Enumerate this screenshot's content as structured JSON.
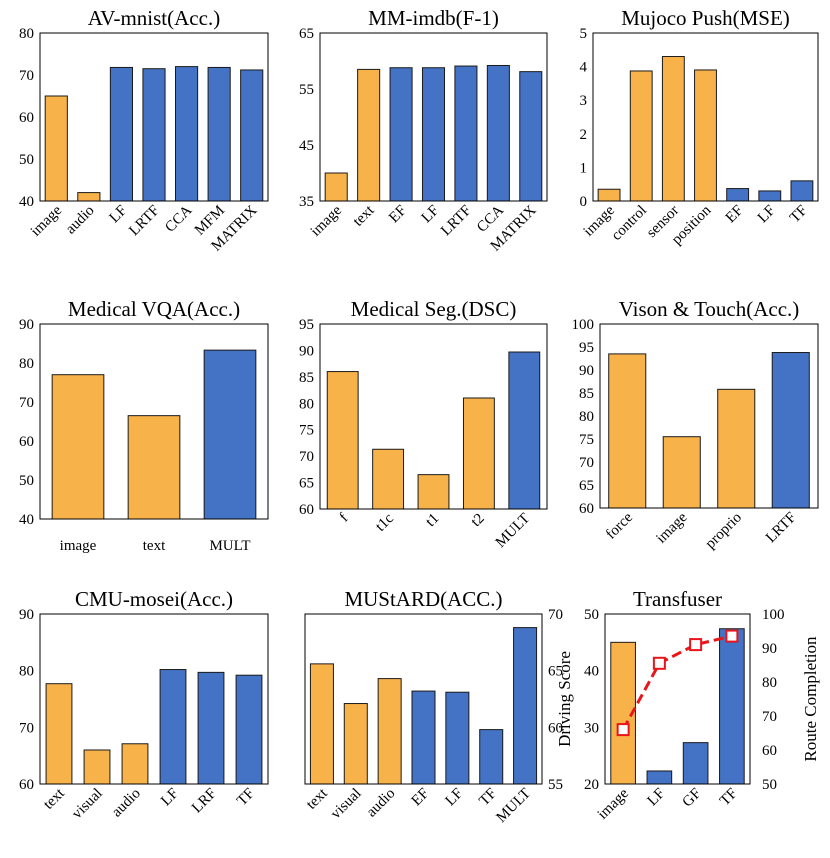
{
  "colors": {
    "unimodal": "#F8B24A",
    "multimodal": "#4472C4",
    "line": "#E8161B"
  },
  "chart_data": [
    {
      "type": "bar",
      "title": "AV-mnist(Acc.)",
      "categories": [
        "image",
        "audio",
        "LF",
        "LRTF",
        "CCA",
        "MFM",
        "MATRIX"
      ],
      "values": [
        65,
        42,
        71.8,
        71.5,
        72,
        71.8,
        71.2
      ],
      "kinds": [
        "uni",
        "uni",
        "multi",
        "multi",
        "multi",
        "multi",
        "multi"
      ],
      "ylim": [
        40,
        80
      ],
      "yticks": [
        40,
        50,
        60,
        70,
        80
      ],
      "xlabel": "",
      "ylabel": "",
      "rotate_labels": true
    },
    {
      "type": "bar",
      "title": "MM-imdb(F-1)",
      "categories": [
        "image",
        "text",
        "EF",
        "LF",
        "LRTF",
        "CCA",
        "MATRIX"
      ],
      "values": [
        40,
        58.5,
        58.8,
        58.8,
        59.1,
        59.2,
        58.1
      ],
      "kinds": [
        "uni",
        "uni",
        "multi",
        "multi",
        "multi",
        "multi",
        "multi"
      ],
      "ylim": [
        35,
        65
      ],
      "yticks": [
        35,
        45,
        55,
        65
      ],
      "xlabel": "",
      "ylabel": "",
      "rotate_labels": true
    },
    {
      "type": "bar",
      "title": "Mujoco Push(MSE)",
      "categories": [
        "image",
        "control",
        "sensor",
        "position",
        "EF",
        "LF",
        "TF"
      ],
      "values": [
        0.35,
        3.87,
        4.3,
        3.9,
        0.37,
        0.3,
        0.6
      ],
      "kinds": [
        "uni",
        "uni",
        "uni",
        "uni",
        "multi",
        "multi",
        "multi"
      ],
      "ylim": [
        0,
        5
      ],
      "yticks": [
        0,
        1,
        2,
        3,
        4,
        5
      ],
      "xlabel": "",
      "ylabel": "",
      "rotate_labels": true
    },
    {
      "type": "bar",
      "title": "Medical VQA(Acc.)",
      "categories": [
        "image",
        "text",
        "MULT"
      ],
      "values": [
        77,
        66.5,
        83.3
      ],
      "kinds": [
        "uni",
        "uni",
        "multi"
      ],
      "ylim": [
        40,
        90
      ],
      "yticks": [
        40,
        50,
        60,
        70,
        80,
        90
      ],
      "xlabel": "",
      "ylabel": "",
      "rotate_labels": false
    },
    {
      "type": "bar",
      "title": "Medical Seg.(DSC)",
      "categories": [
        "f",
        "t1c",
        "t1",
        "t2",
        "MULT"
      ],
      "values": [
        86,
        71.3,
        66.5,
        81,
        89.7
      ],
      "kinds": [
        "uni",
        "uni",
        "uni",
        "uni",
        "multi"
      ],
      "ylim": [
        60,
        95
      ],
      "yticks": [
        60,
        65,
        70,
        75,
        80,
        85,
        90,
        95
      ],
      "xlabel": "",
      "ylabel": "",
      "rotate_labels": true
    },
    {
      "type": "bar",
      "title": "Vison & Touch(Acc.)",
      "categories": [
        "force",
        "image",
        "proprio",
        "LRTF"
      ],
      "values": [
        93.5,
        75.5,
        85.8,
        93.8
      ],
      "kinds": [
        "uni",
        "uni",
        "uni",
        "multi"
      ],
      "ylim": [
        60,
        100
      ],
      "yticks": [
        60,
        65,
        70,
        75,
        80,
        85,
        90,
        95,
        100
      ],
      "xlabel": "",
      "ylabel": "",
      "rotate_labels": true
    },
    {
      "type": "bar",
      "title": "CMU-mosei(Acc.)",
      "categories": [
        "text",
        "visual",
        "audio",
        "LF",
        "LRF",
        "TF"
      ],
      "values": [
        77.7,
        66,
        67.1,
        80.2,
        79.7,
        79.2
      ],
      "kinds": [
        "uni",
        "uni",
        "uni",
        "multi",
        "multi",
        "multi"
      ],
      "ylim": [
        60,
        90
      ],
      "yticks": [
        60,
        70,
        80,
        90
      ],
      "xlabel": "",
      "ylabel": "",
      "rotate_labels": true
    },
    {
      "type": "bar",
      "title": "MUStARD(ACC.)",
      "categories": [
        "text",
        "visual",
        "audio",
        "EF",
        "LF",
        "TF",
        "MULT"
      ],
      "values": [
        65.6,
        62.1,
        64.3,
        63.2,
        63.1,
        59.8,
        68.8
      ],
      "kinds": [
        "uni",
        "uni",
        "uni",
        "multi",
        "multi",
        "multi",
        "multi"
      ],
      "ylim": [
        55,
        70
      ],
      "yticks": [
        55,
        60,
        65,
        70
      ],
      "xlabel": "",
      "ylabel": "",
      "rotate_labels": true
    },
    {
      "type": "bar+line",
      "title": "Transfuser",
      "categories": [
        "image",
        "LF",
        "GF",
        "TF"
      ],
      "values": [
        45,
        22.3,
        27.3,
        47.4
      ],
      "kinds": [
        "uni",
        "multi",
        "multi",
        "multi"
      ],
      "ylim": [
        20,
        50
      ],
      "yticks": [
        20,
        30,
        40,
        50
      ],
      "xlabel": "",
      "ylabel": "Driving Score",
      "rotate_labels": true,
      "secondary": {
        "name": "Route Completion",
        "ylabel": "Route Completion",
        "values": [
          66,
          85.5,
          91,
          93.5
        ],
        "ylim": [
          50,
          100
        ],
        "yticks": [
          50,
          60,
          70,
          80,
          90,
          100
        ]
      }
    }
  ]
}
